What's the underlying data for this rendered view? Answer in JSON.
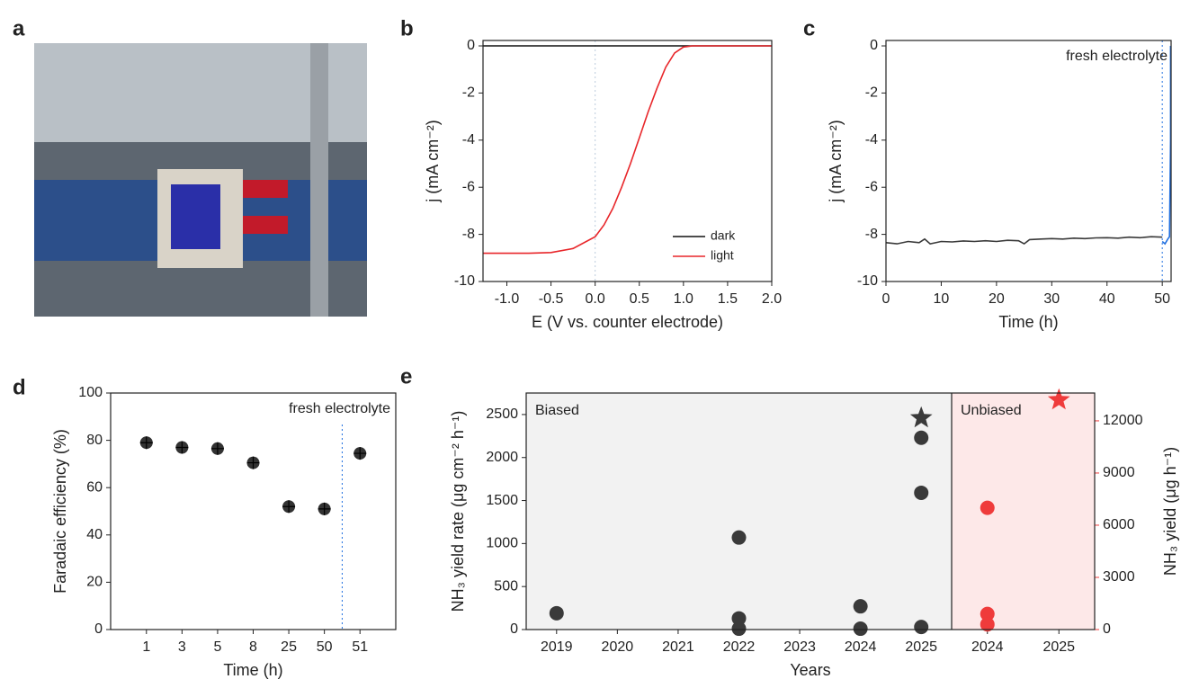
{
  "chart_data": [
    {
      "type": "image",
      "panel": "a"
    },
    {
      "type": "line",
      "panel": "b",
      "xlabel": "E (V vs. counter electrode)",
      "ylabel": "j (mA cm⁻²)",
      "xlim": [
        -1.27,
        2.0
      ],
      "ylim": [
        -10,
        0.23
      ],
      "xticks": [
        {
          "value": -1,
          "label": "-1.0"
        },
        {
          "value": -0.5,
          "label": "-0.5"
        },
        {
          "value": 0,
          "label": "0.0"
        },
        0.5,
        {
          "value": 1,
          "label": "1.0"
        },
        1.5,
        {
          "value": 2,
          "label": "2.0"
        }
      ],
      "yticks": [
        0,
        -2,
        -4,
        -6,
        -8,
        -10
      ],
      "reference_x": 0,
      "legend": "lower right",
      "series": [
        {
          "name": "dark",
          "color": "#111111",
          "x": [
            -1.27,
            0,
            1,
            2
          ],
          "values": [
            0,
            0,
            0,
            0
          ]
        },
        {
          "name": "light",
          "color": "#e8262a",
          "x": [
            -1.27,
            -1.0,
            -0.75,
            -0.5,
            -0.25,
            0,
            0.1,
            0.2,
            0.3,
            0.4,
            0.5,
            0.6,
            0.7,
            0.8,
            0.9,
            1.0,
            1.1,
            1.25,
            1.5,
            2.0
          ],
          "values": [
            -8.8,
            -8.8,
            -8.8,
            -8.77,
            -8.6,
            -8.1,
            -7.6,
            -6.9,
            -6.0,
            -5.0,
            -3.9,
            -2.8,
            -1.8,
            -0.9,
            -0.3,
            -0.05,
            0,
            0,
            0,
            0
          ]
        }
      ]
    },
    {
      "type": "line",
      "panel": "c",
      "xlabel": "Time (h)",
      "ylabel": "j (mA cm⁻²)",
      "xlim": [
        0,
        51.6
      ],
      "ylim": [
        -10,
        0.23
      ],
      "xticks": [
        0,
        10,
        20,
        30,
        40,
        50
      ],
      "yticks": [
        0,
        -2,
        -4,
        -6,
        -8,
        -10
      ],
      "annotation": "fresh electrolyte",
      "annotation_color": "#1f6fe0",
      "reference_x": 50,
      "series": [
        {
          "color": "#3a3a3a",
          "x": [
            0,
            2,
            4,
            6,
            7,
            8,
            10,
            12,
            14,
            16,
            18,
            20,
            22,
            24,
            25,
            26,
            28,
            30,
            32,
            34,
            36,
            38,
            40,
            42,
            44,
            46,
            48,
            50
          ],
          "values": [
            -8.35,
            -8.4,
            -8.3,
            -8.35,
            -8.2,
            -8.4,
            -8.3,
            -8.32,
            -8.28,
            -8.3,
            -8.27,
            -8.3,
            -8.25,
            -8.27,
            -8.4,
            -8.22,
            -8.2,
            -8.18,
            -8.2,
            -8.16,
            -8.18,
            -8.15,
            -8.14,
            -8.16,
            -8.12,
            -8.14,
            -8.1,
            -8.12
          ]
        },
        {
          "color": "#1f6fe0",
          "x": [
            50,
            50.5,
            51,
            51.3,
            51.5,
            51.5
          ],
          "values": [
            -8.3,
            -8.4,
            -8.2,
            -8.1,
            -4,
            0
          ]
        }
      ]
    },
    {
      "type": "scatter",
      "panel": "d",
      "xlabel": "Time (h)",
      "ylabel": "Faradaic efficiency (%)",
      "categories": [
        "1",
        "3",
        "5",
        "8",
        "25",
        "50",
        "51"
      ],
      "values": [
        79,
        77,
        76.5,
        70.5,
        52,
        51,
        74.5
      ],
      "color": "#333333",
      "ylim": [
        0,
        100
      ],
      "yticks": [
        0,
        20,
        40,
        60,
        80,
        100
      ],
      "annotation": "fresh electrolyte",
      "annotation_color": "#1f6fe0"
    },
    {
      "type": "dual_scatter",
      "panel": "e",
      "xlabel": "Years",
      "ylabel": "NH₃ yield rate (μg cm⁻² h⁻¹)",
      "y2label": "NH₃ yield (μg h⁻¹)",
      "ylim": [
        0,
        2750
      ],
      "yticks": [
        0,
        500,
        1000,
        1500,
        2000,
        2500
      ],
      "y2lim": [
        0,
        13600
      ],
      "y2ticks": [
        0,
        3000,
        6000,
        9000,
        12000
      ],
      "y2color": "#ef3b3b",
      "regions": [
        {
          "name": "Biased",
          "axis": "y",
          "color": "#3a3a3a",
          "background": "#f2f2f2",
          "categories": [
            "2019",
            "2020",
            "2021",
            "2022",
            "2023",
            "2024",
            "2025"
          ],
          "x": [
            "2019",
            "2022",
            "2022",
            "2022",
            "2024",
            "2024",
            "2025",
            "2025",
            "2025"
          ],
          "values": [
            190,
            1070,
            130,
            10,
            270,
            10,
            2230,
            1590,
            30
          ],
          "star": {
            "x": "2025",
            "value": 2460
          }
        },
        {
          "name": "Unbiased",
          "axis": "y2",
          "color": "#ef3b3b",
          "background": "#fde8e8",
          "categories": [
            "2024",
            "2025"
          ],
          "x": [
            "2024",
            "2024",
            "2024"
          ],
          "values": [
            7000,
            900,
            300
          ],
          "star": {
            "x": "2025",
            "value": 13200
          }
        }
      ]
    }
  ]
}
